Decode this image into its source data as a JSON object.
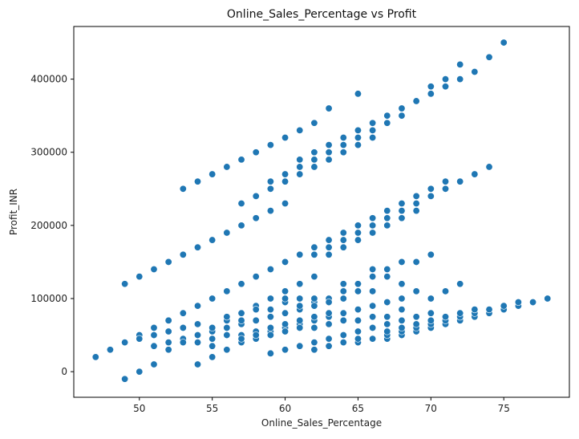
{
  "chart_data": {
    "type": "scatter",
    "title": "Online_Sales_Percentage vs Profit",
    "xlabel": "Online_Sales_Percentage",
    "ylabel": "Profit_INR",
    "xlim": [
      45.5,
      79.5
    ],
    "ylim": [
      -35000,
      472000
    ],
    "xticks": [
      50,
      55,
      60,
      65,
      70,
      75
    ],
    "yticks": [
      0,
      100000,
      200000,
      300000,
      400000
    ],
    "grid": false,
    "marker_color": "#1f77b4",
    "points": [
      [
        49,
        120000
      ],
      [
        50,
        130000
      ],
      [
        51,
        140000
      ],
      [
        52,
        150000
      ],
      [
        53,
        160000
      ],
      [
        54,
        170000
      ],
      [
        55,
        180000
      ],
      [
        56,
        190000
      ],
      [
        57,
        200000
      ],
      [
        58,
        210000
      ],
      [
        59,
        220000
      ],
      [
        60,
        230000
      ],
      [
        53,
        250000
      ],
      [
        54,
        260000
      ],
      [
        55,
        270000
      ],
      [
        56,
        280000
      ],
      [
        57,
        290000
      ],
      [
        58,
        300000
      ],
      [
        59,
        310000
      ],
      [
        60,
        320000
      ],
      [
        61,
        330000
      ],
      [
        62,
        340000
      ],
      [
        63,
        360000
      ],
      [
        65,
        380000
      ],
      [
        57,
        230000
      ],
      [
        58,
        240000
      ],
      [
        59,
        250000
      ],
      [
        59,
        260000
      ],
      [
        60,
        260000
      ],
      [
        60,
        270000
      ],
      [
        61,
        270000
      ],
      [
        61,
        280000
      ],
      [
        61,
        290000
      ],
      [
        62,
        280000
      ],
      [
        62,
        290000
      ],
      [
        62,
        300000
      ],
      [
        63,
        290000
      ],
      [
        63,
        300000
      ],
      [
        63,
        310000
      ],
      [
        64,
        300000
      ],
      [
        64,
        310000
      ],
      [
        64,
        320000
      ],
      [
        65,
        310000
      ],
      [
        65,
        320000
      ],
      [
        65,
        330000
      ],
      [
        66,
        320000
      ],
      [
        66,
        330000
      ],
      [
        66,
        340000
      ],
      [
        67,
        340000
      ],
      [
        67,
        350000
      ],
      [
        68,
        350000
      ],
      [
        68,
        360000
      ],
      [
        69,
        370000
      ],
      [
        70,
        380000
      ],
      [
        70,
        390000
      ],
      [
        71,
        390000
      ],
      [
        71,
        400000
      ],
      [
        72,
        400000
      ],
      [
        72,
        420000
      ],
      [
        73,
        410000
      ],
      [
        74,
        430000
      ],
      [
        75,
        450000
      ],
      [
        53,
        80000
      ],
      [
        54,
        90000
      ],
      [
        55,
        100000
      ],
      [
        56,
        110000
      ],
      [
        57,
        120000
      ],
      [
        58,
        130000
      ],
      [
        59,
        140000
      ],
      [
        60,
        150000
      ],
      [
        61,
        160000
      ],
      [
        62,
        170000
      ],
      [
        63,
        180000
      ],
      [
        64,
        190000
      ],
      [
        56,
        70000
      ],
      [
        57,
        80000
      ],
      [
        58,
        90000
      ],
      [
        59,
        100000
      ],
      [
        60,
        110000
      ],
      [
        61,
        120000
      ],
      [
        62,
        130000
      ],
      [
        62,
        160000
      ],
      [
        63,
        160000
      ],
      [
        63,
        170000
      ],
      [
        64,
        170000
      ],
      [
        64,
        180000
      ],
      [
        65,
        180000
      ],
      [
        65,
        190000
      ],
      [
        65,
        200000
      ],
      [
        66,
        190000
      ],
      [
        66,
        200000
      ],
      [
        66,
        210000
      ],
      [
        67,
        200000
      ],
      [
        67,
        210000
      ],
      [
        67,
        220000
      ],
      [
        68,
        210000
      ],
      [
        68,
        220000
      ],
      [
        68,
        230000
      ],
      [
        69,
        220000
      ],
      [
        69,
        230000
      ],
      [
        69,
        240000
      ],
      [
        70,
        240000
      ],
      [
        70,
        250000
      ],
      [
        71,
        250000
      ],
      [
        71,
        260000
      ],
      [
        72,
        260000
      ],
      [
        73,
        270000
      ],
      [
        74,
        280000
      ],
      [
        47,
        20000
      ],
      [
        48,
        30000
      ],
      [
        49,
        40000
      ],
      [
        50,
        50000
      ],
      [
        51,
        60000
      ],
      [
        52,
        70000
      ],
      [
        53,
        45000
      ],
      [
        54,
        65000
      ],
      [
        55,
        55000
      ],
      [
        56,
        75000
      ],
      [
        57,
        65000
      ],
      [
        58,
        85000
      ],
      [
        59,
        85000
      ],
      [
        60,
        95000
      ],
      [
        61,
        85000
      ],
      [
        62,
        95000
      ],
      [
        50,
        45000
      ],
      [
        51,
        50000
      ],
      [
        52,
        55000
      ],
      [
        53,
        60000
      ],
      [
        54,
        50000
      ],
      [
        55,
        60000
      ],
      [
        56,
        60000
      ],
      [
        57,
        70000
      ],
      [
        58,
        70000
      ],
      [
        59,
        75000
      ],
      [
        60,
        80000
      ],
      [
        61,
        90000
      ],
      [
        62,
        90000
      ],
      [
        63,
        100000
      ],
      [
        64,
        110000
      ],
      [
        65,
        120000
      ],
      [
        66,
        130000
      ],
      [
        67,
        140000
      ],
      [
        68,
        150000
      ],
      [
        69,
        150000
      ],
      [
        70,
        160000
      ],
      [
        51,
        35000
      ],
      [
        52,
        40000
      ],
      [
        53,
        40000
      ],
      [
        54,
        40000
      ],
      [
        55,
        45000
      ],
      [
        56,
        50000
      ],
      [
        57,
        50000
      ],
      [
        58,
        55000
      ],
      [
        59,
        55000
      ],
      [
        60,
        60000
      ],
      [
        61,
        65000
      ],
      [
        62,
        70000
      ],
      [
        63,
        75000
      ],
      [
        64,
        80000
      ],
      [
        65,
        85000
      ],
      [
        66,
        90000
      ],
      [
        67,
        95000
      ],
      [
        68,
        100000
      ],
      [
        69,
        110000
      ],
      [
        70,
        100000
      ],
      [
        71,
        110000
      ],
      [
        72,
        120000
      ],
      [
        49,
        -10000
      ],
      [
        50,
        0
      ],
      [
        51,
        10000
      ],
      [
        52,
        30000
      ],
      [
        54,
        10000
      ],
      [
        55,
        20000
      ],
      [
        55,
        35000
      ],
      [
        56,
        30000
      ],
      [
        57,
        40000
      ],
      [
        57,
        45000
      ],
      [
        58,
        45000
      ],
      [
        58,
        50000
      ],
      [
        59,
        25000
      ],
      [
        59,
        50000
      ],
      [
        59,
        60000
      ],
      [
        60,
        30000
      ],
      [
        60,
        55000
      ],
      [
        60,
        65000
      ],
      [
        61,
        35000
      ],
      [
        61,
        60000
      ],
      [
        61,
        70000
      ],
      [
        62,
        30000
      ],
      [
        62,
        40000
      ],
      [
        62,
        60000
      ],
      [
        62,
        75000
      ],
      [
        63,
        35000
      ],
      [
        63,
        45000
      ],
      [
        63,
        65000
      ],
      [
        63,
        80000
      ],
      [
        64,
        40000
      ],
      [
        64,
        50000
      ],
      [
        64,
        70000
      ],
      [
        65,
        40000
      ],
      [
        65,
        45000
      ],
      [
        65,
        55000
      ],
      [
        65,
        70000
      ],
      [
        66,
        45000
      ],
      [
        66,
        60000
      ],
      [
        66,
        75000
      ],
      [
        67,
        45000
      ],
      [
        67,
        50000
      ],
      [
        67,
        55000
      ],
      [
        67,
        65000
      ],
      [
        67,
        75000
      ],
      [
        68,
        50000
      ],
      [
        68,
        55000
      ],
      [
        68,
        60000
      ],
      [
        68,
        70000
      ],
      [
        68,
        85000
      ],
      [
        69,
        55000
      ],
      [
        69,
        60000
      ],
      [
        69,
        65000
      ],
      [
        69,
        75000
      ],
      [
        70,
        60000
      ],
      [
        70,
        65000
      ],
      [
        70,
        70000
      ],
      [
        70,
        80000
      ],
      [
        71,
        65000
      ],
      [
        71,
        70000
      ],
      [
        71,
        75000
      ],
      [
        72,
        70000
      ],
      [
        72,
        75000
      ],
      [
        72,
        80000
      ],
      [
        73,
        75000
      ],
      [
        73,
        80000
      ],
      [
        73,
        85000
      ],
      [
        74,
        80000
      ],
      [
        74,
        85000
      ],
      [
        75,
        85000
      ],
      [
        75,
        90000
      ],
      [
        76,
        90000
      ],
      [
        76,
        95000
      ],
      [
        77,
        95000
      ],
      [
        78,
        100000
      ],
      [
        60,
        100000
      ],
      [
        61,
        100000
      ],
      [
        62,
        100000
      ],
      [
        63,
        95000
      ],
      [
        64,
        100000
      ],
      [
        64,
        120000
      ],
      [
        65,
        110000
      ],
      [
        66,
        110000
      ],
      [
        66,
        140000
      ],
      [
        67,
        130000
      ],
      [
        68,
        120000
      ]
    ]
  }
}
